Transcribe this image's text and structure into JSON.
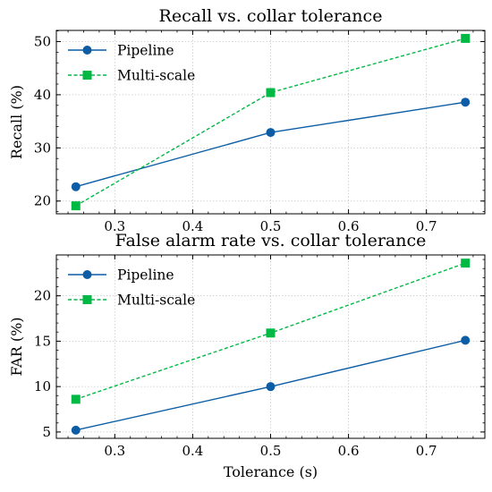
{
  "chart_data": [
    {
      "type": "line",
      "title": "Recall vs. collar tolerance",
      "xlabel": "",
      "ylabel": "Recall (%)",
      "x": [
        0.25,
        0.5,
        0.75
      ],
      "xlim": [
        0.225,
        0.775
      ],
      "ylim": [
        17.6,
        52.1
      ],
      "xticks": [
        0.3,
        0.4,
        0.5,
        0.6,
        0.7
      ],
      "yticks": [
        20,
        30,
        40,
        50
      ],
      "grid": true,
      "legend_position": "top-left",
      "series": [
        {
          "name": "Pipeline",
          "values": [
            22.7,
            32.9,
            38.6
          ],
          "color": "#0C5DA5",
          "marker": "circle",
          "dash": "solid"
        },
        {
          "name": "Multi-scale",
          "values": [
            19.1,
            40.4,
            50.6
          ],
          "color": "#00B945",
          "marker": "square",
          "dash": "dashed"
        }
      ]
    },
    {
      "type": "line",
      "title": "False alarm rate vs. collar tolerance",
      "xlabel": "Tolerance (s)",
      "ylabel": "FAR (%)",
      "x": [
        0.25,
        0.5,
        0.75
      ],
      "xlim": [
        0.225,
        0.775
      ],
      "ylim": [
        4.3,
        24.5
      ],
      "xticks": [
        0.3,
        0.4,
        0.5,
        0.6,
        0.7
      ],
      "yticks": [
        5,
        10,
        15,
        20
      ],
      "grid": true,
      "legend_position": "top-left",
      "series": [
        {
          "name": "Pipeline",
          "values": [
            5.2,
            10.0,
            15.1
          ],
          "color": "#0C5DA5",
          "marker": "circle",
          "dash": "solid"
        },
        {
          "name": "Multi-scale",
          "values": [
            8.6,
            15.9,
            23.6
          ],
          "color": "#00B945",
          "marker": "square",
          "dash": "dashed"
        }
      ]
    }
  ]
}
